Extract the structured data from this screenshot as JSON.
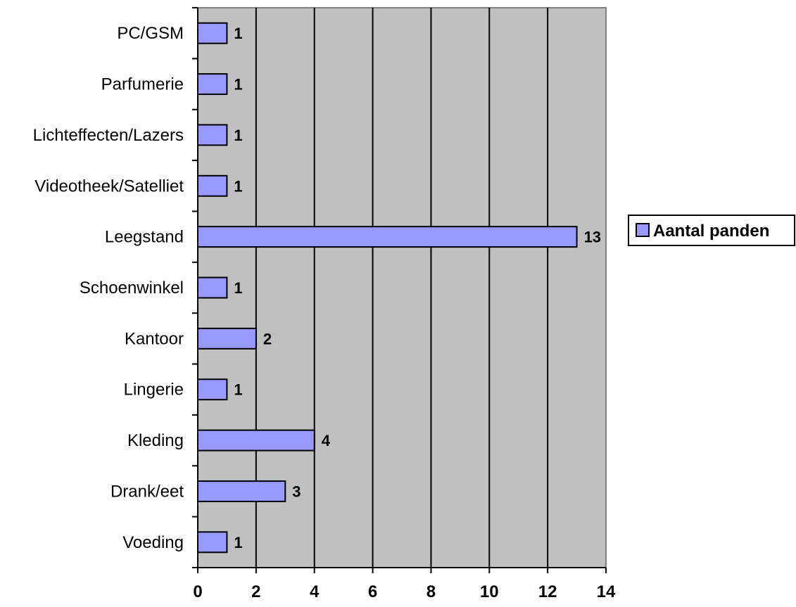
{
  "chart_data": {
    "type": "bar",
    "orientation": "horizontal",
    "categories": [
      "Voeding",
      "Drank/eet",
      "Kleding",
      "Lingerie",
      "Kantoor",
      "Schoenwinkel",
      "Leegstand",
      "Videotheek/Satelliet",
      "Lichteffecten/Lazers",
      "Parfumerie",
      "PC/GSM"
    ],
    "series": [
      {
        "name": "Aantal panden",
        "values": [
          1,
          3,
          4,
          1,
          2,
          1,
          13,
          1,
          1,
          1,
          1
        ],
        "color": "#9999ff"
      }
    ],
    "xlim": [
      0,
      14
    ],
    "xticks": [
      0,
      2,
      4,
      6,
      8,
      10,
      12,
      14
    ],
    "grid": "vertical",
    "plot_background": "#c0c0c0",
    "legend_position": "right",
    "data_labels": true
  }
}
